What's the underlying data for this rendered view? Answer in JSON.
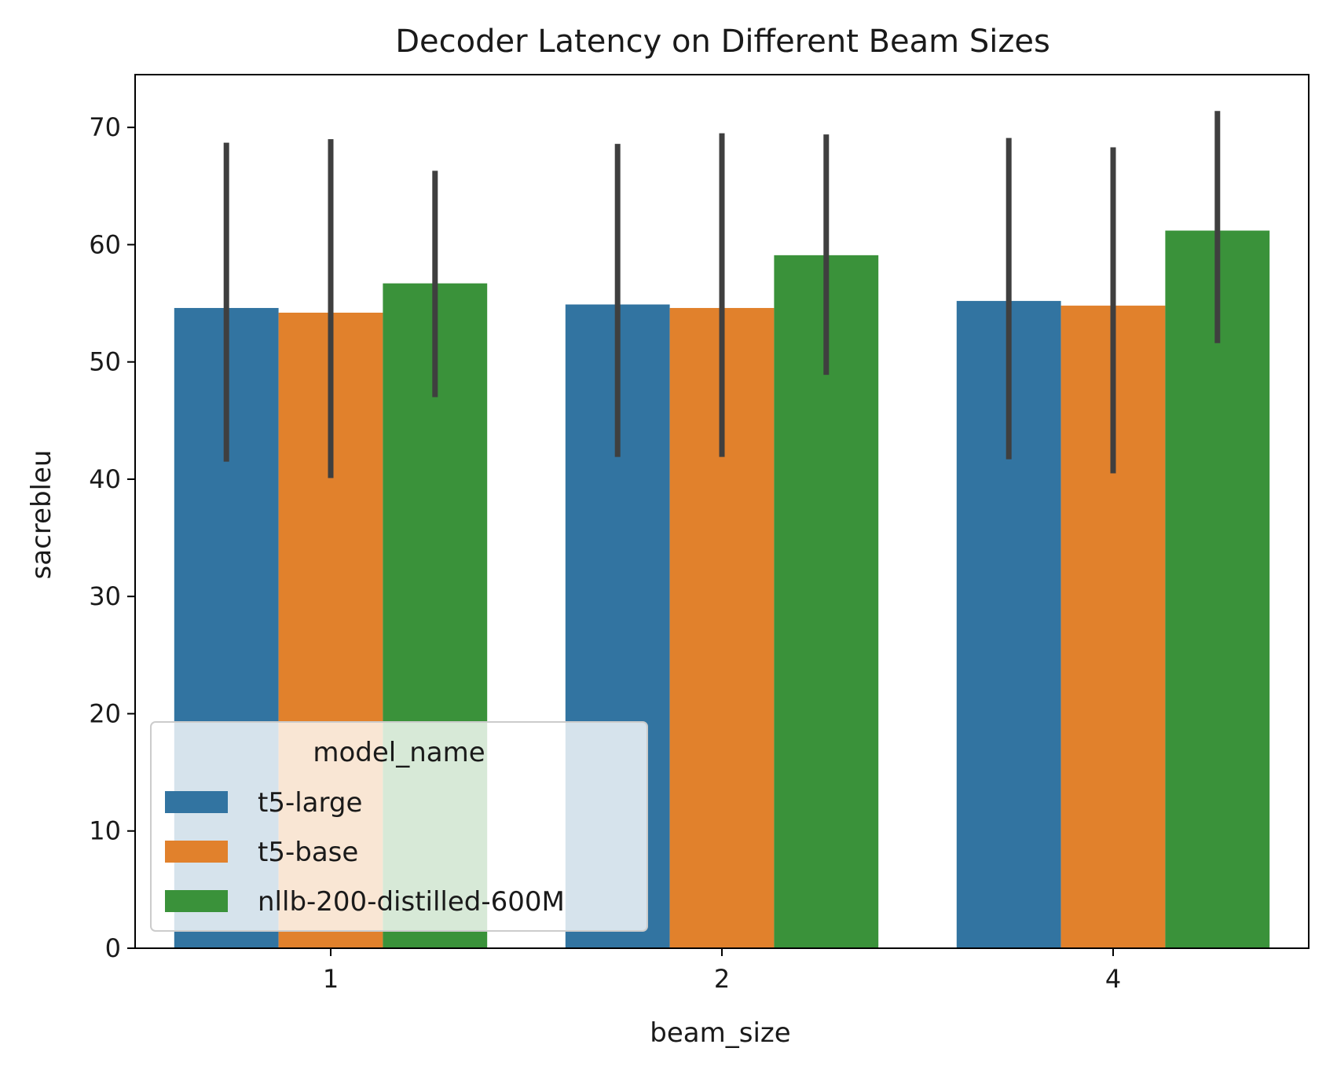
{
  "chart_data": {
    "type": "bar",
    "title": "Decoder Latency on Different Beam Sizes",
    "xlabel": "beam_size",
    "ylabel": "sacrebleu",
    "categories": [
      "1",
      "2",
      "4"
    ],
    "ylim": [
      0,
      74.5
    ],
    "yticks": [
      0,
      10,
      20,
      30,
      40,
      50,
      60,
      70
    ],
    "grid": false,
    "legend": {
      "title": "model_name",
      "placement": "lower-left"
    },
    "series": [
      {
        "name": "t5-large",
        "color": "#3274a1",
        "values": [
          54.6,
          54.9,
          55.2
        ],
        "error_low": [
          41.5,
          41.9,
          41.7
        ],
        "error_high": [
          68.7,
          68.6,
          69.1
        ]
      },
      {
        "name": "t5-base",
        "color": "#e1812c",
        "values": [
          54.2,
          54.6,
          54.8
        ],
        "error_low": [
          40.1,
          41.9,
          40.5
        ],
        "error_high": [
          69.0,
          69.5,
          68.3
        ]
      },
      {
        "name": "nllb-200-distilled-600M",
        "color": "#3a923a",
        "values": [
          56.7,
          59.1,
          61.2
        ],
        "error_low": [
          47.0,
          48.9,
          51.6
        ],
        "error_high": [
          66.3,
          69.4,
          71.4
        ]
      }
    ],
    "error_bar_color": "#3f3f3f"
  }
}
